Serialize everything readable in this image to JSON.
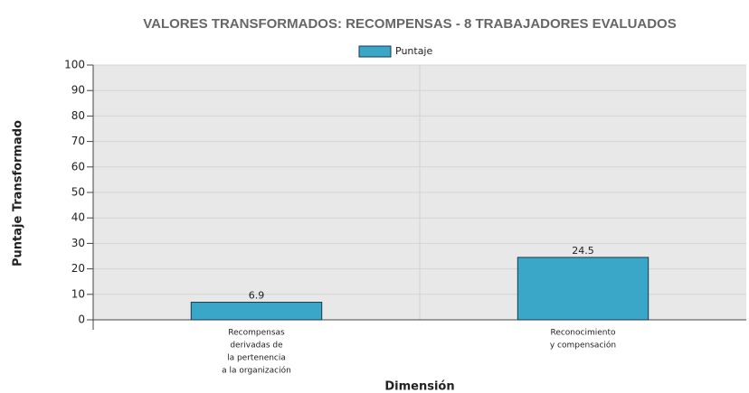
{
  "chart_data": {
    "type": "bar",
    "title": "VALORES TRANSFORMADOS: RECOMPENSAS - 8 TRABAJADORES EVALUADOS",
    "x_label": "Dimensión",
    "y_label": "Puntaje Transformado",
    "categories": [
      [
        "Recompensas",
        "derivadas de",
        "la pertenencia",
        "a la organización"
      ],
      [
        "Reconocimiento",
        "y compensación"
      ]
    ],
    "series": [
      {
        "name": "Puntaje",
        "color": "#3aa6c8",
        "values": [
          6.9,
          24.5
        ]
      }
    ],
    "ylim": [
      0,
      100
    ],
    "yticks": [
      0,
      10,
      20,
      30,
      40,
      50,
      60,
      70,
      80,
      90,
      100
    ],
    "grid": true,
    "legend": "top"
  }
}
